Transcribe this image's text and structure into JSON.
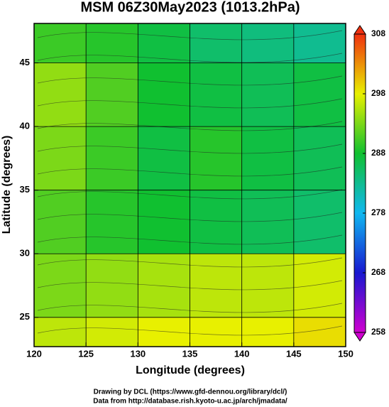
{
  "chart_data": {
    "type": "heatmap",
    "title": "MSM 06Z30May2023 (1013.2hPa)",
    "xlabel": "Longitude (degrees)",
    "ylabel": "Latitude  (degrees)",
    "xlim": [
      120,
      150
    ],
    "ylim": [
      22.7,
      48.1
    ],
    "xticks": [
      120,
      125,
      130,
      135,
      140,
      145,
      150
    ],
    "yticks": [
      25,
      30,
      35,
      40,
      45
    ],
    "grid": true,
    "xbins": [
      120,
      125,
      130,
      135,
      140,
      145,
      150
    ],
    "ybins": [
      48.1,
      45,
      40,
      35,
      30,
      25,
      22.7
    ],
    "z": [
      [
        290,
        289,
        287,
        285,
        284,
        283
      ],
      [
        294,
        291,
        288,
        287,
        286,
        287
      ],
      [
        293,
        290,
        287,
        289,
        287,
        286
      ],
      [
        291,
        289,
        288,
        287,
        286,
        285
      ],
      [
        293,
        294,
        295,
        296,
        296,
        297
      ],
      [
        296,
        297,
        298,
        298,
        298,
        299
      ]
    ],
    "clim": [
      258,
      308
    ],
    "cticks": [
      258,
      268,
      278,
      288,
      298,
      308
    ],
    "colormap": [
      "#d000d0",
      "#1818d0",
      "#10b8f0",
      "#10c030",
      "#e8f000",
      "#f03010"
    ],
    "footer": [
      "Drawing by DCL (https://www.gfd-dennou.org/library/dcl/)",
      "Data from http://database.rish.kyoto-u.ac.jp/arch/jmadata/"
    ]
  }
}
